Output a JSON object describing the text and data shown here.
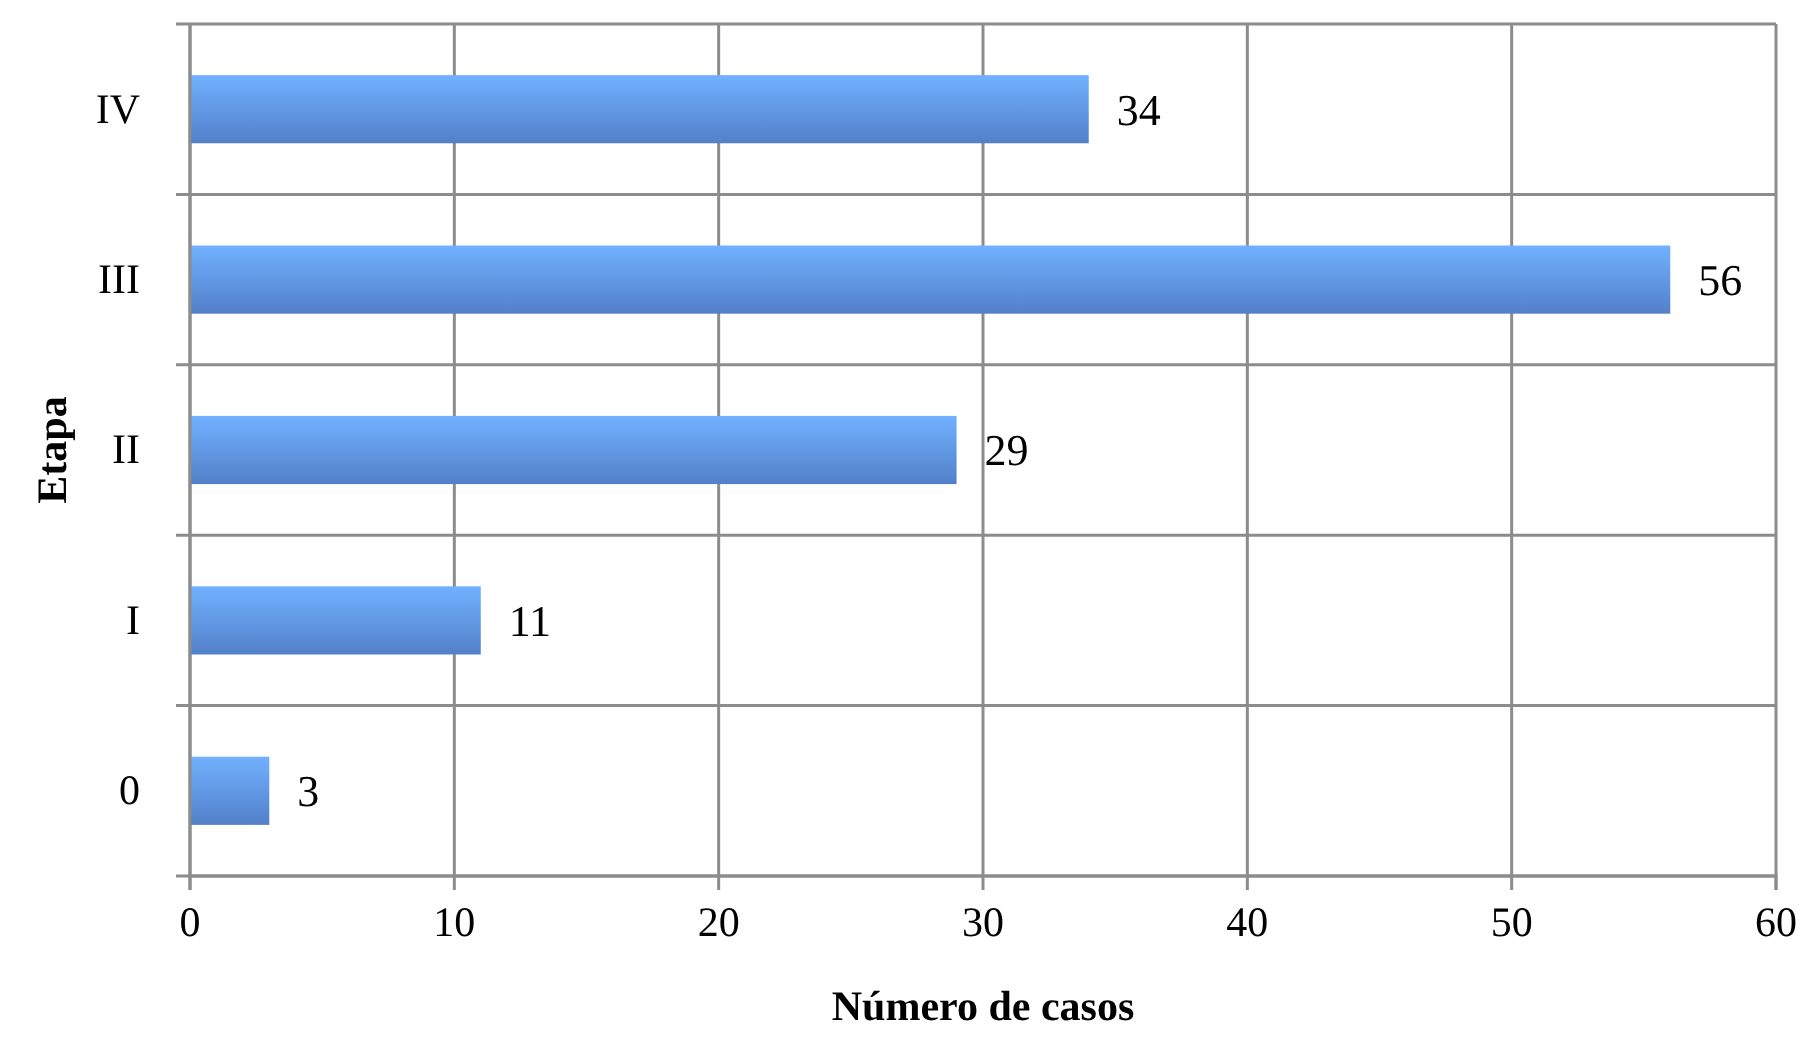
{
  "chart_data": {
    "type": "bar",
    "orientation": "horizontal",
    "xlabel": "Número de casos",
    "ylabel": "Etapa",
    "categories": [
      "IV",
      "III",
      "II",
      "I",
      "0"
    ],
    "values": [
      34,
      56,
      29,
      11,
      3
    ],
    "color": "#5b8fe0",
    "xlim": [
      0,
      60
    ],
    "xticks": [
      0,
      10,
      20,
      30,
      40,
      50,
      60
    ],
    "grid": true,
    "data_labels": true
  }
}
